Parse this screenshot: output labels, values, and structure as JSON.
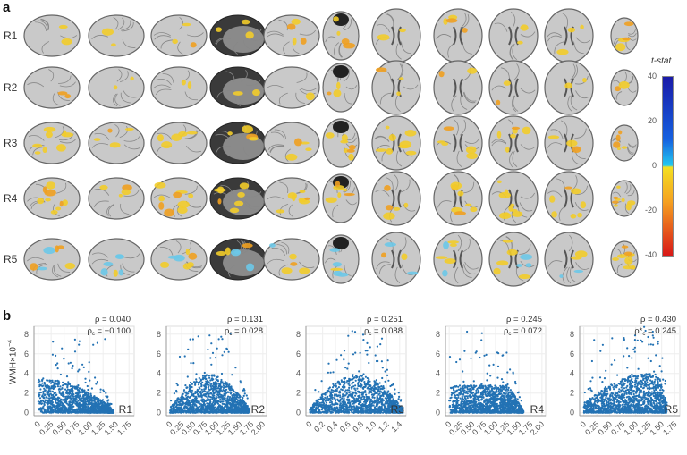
{
  "panel_a": {
    "label": "a",
    "rows": [
      "R1",
      "R2",
      "R3",
      "R4",
      "R5"
    ],
    "colorbar": {
      "title": "t-stat",
      "ticks": [
        "40",
        "20",
        "0",
        "-20",
        "-40"
      ],
      "range": [
        -40,
        40
      ],
      "colors": {
        "top": "#1a1aa8",
        "mid_pos": "#22c8f0",
        "mid_neg": "#f4e020",
        "bottom": "#d81818"
      }
    }
  },
  "panel_b": {
    "label": "b",
    "ylabel": "WMH×10",
    "ylabel_exp": "−4"
  },
  "chart_data": [
    {
      "type": "scatter",
      "region": "R1",
      "rho": "ρ = 0.040",
      "rho_c": "ρ",
      "rho_c_sub": "c",
      "rho_c_val": " = −0.100",
      "xlim": [
        -0.08,
        1.85
      ],
      "ylim": [
        -0.3,
        8.8
      ],
      "xticks": [
        "0",
        "0.25",
        "0.50",
        "0.75",
        "1.00",
        "1.25",
        "1.50",
        "1.75"
      ],
      "xtick_vals": [
        0,
        0.25,
        0.5,
        0.75,
        1,
        1.25,
        1.5,
        1.75
      ],
      "yticks": [
        "0",
        "2",
        "4",
        "6",
        "8"
      ],
      "point_x_max": 1.45,
      "trend": "decreasing",
      "color": "#2372b4"
    },
    {
      "type": "scatter",
      "region": "R2",
      "rho": "ρ = 0.131",
      "rho_c": "ρ",
      "rho_c_sub": "c",
      "rho_c_val": " = 0.028",
      "xlim": [
        -0.08,
        2.08
      ],
      "ylim": [
        -0.3,
        8.8
      ],
      "xticks": [
        "0",
        "0.25",
        "0.50",
        "0.75",
        "1.00",
        "1.25",
        "1.50",
        "1.75",
        "2.00"
      ],
      "xtick_vals": [
        0,
        0.25,
        0.5,
        0.75,
        1,
        1.25,
        1.5,
        1.75,
        2
      ],
      "yticks": [
        "0",
        "2",
        "4",
        "6",
        "8"
      ],
      "point_x_max": 1.7,
      "trend": "hump",
      "color": "#2372b4"
    },
    {
      "type": "scatter",
      "region": "R3",
      "rho": "ρ = 0.251",
      "rho_c": "ρ",
      "rho_c_sub": "c",
      "rho_c_val": " = 0.088",
      "xlim": [
        -0.06,
        1.5
      ],
      "ylim": [
        -0.3,
        8.8
      ],
      "xticks": [
        "0",
        "0.2",
        "0.4",
        "0.6",
        "0.8",
        "1.0",
        "1.2",
        "1.4"
      ],
      "xtick_vals": [
        0,
        0.2,
        0.4,
        0.6,
        0.8,
        1,
        1.2,
        1.4
      ],
      "yticks": [
        "0",
        "2",
        "4",
        "6",
        "8"
      ],
      "point_x_max": 1.45,
      "trend": "hump",
      "color": "#2372b4"
    },
    {
      "type": "scatter",
      "region": "R4",
      "rho": "ρ = 0.245",
      "rho_c": "ρ",
      "rho_c_sub": "c",
      "rho_c_val": " = 0.072",
      "xlim": [
        -0.08,
        2.08
      ],
      "ylim": [
        -0.3,
        8.8
      ],
      "xticks": [
        "0",
        "0.25",
        "0.50",
        "0.75",
        "1.00",
        "1.25",
        "1.50",
        "1.75",
        "2.00"
      ],
      "xtick_vals": [
        0,
        0.25,
        0.5,
        0.75,
        1,
        1.25,
        1.5,
        1.75,
        2
      ],
      "yticks": [
        "0",
        "2",
        "4",
        "6",
        "8"
      ],
      "point_x_max": 1.6,
      "trend": "plateau",
      "color": "#2372b4"
    },
    {
      "type": "scatter",
      "region": "R5",
      "rho": "ρ = 0.430",
      "rho_c": "ρ*",
      "rho_c_sub": "c",
      "rho_c_val": " = 0.245",
      "xlim": [
        -0.08,
        1.85
      ],
      "ylim": [
        -0.3,
        8.8
      ],
      "xticks": [
        "0",
        "0.25",
        "0.50",
        "0.75",
        "1.00",
        "1.25",
        "1.50",
        "1.75"
      ],
      "xtick_vals": [
        0,
        0.25,
        0.5,
        0.75,
        1,
        1.25,
        1.5,
        1.75
      ],
      "yticks": [
        "0",
        "2",
        "4",
        "6",
        "8"
      ],
      "point_x_max": 1.6,
      "trend": "increasing",
      "color": "#2372b4"
    }
  ]
}
